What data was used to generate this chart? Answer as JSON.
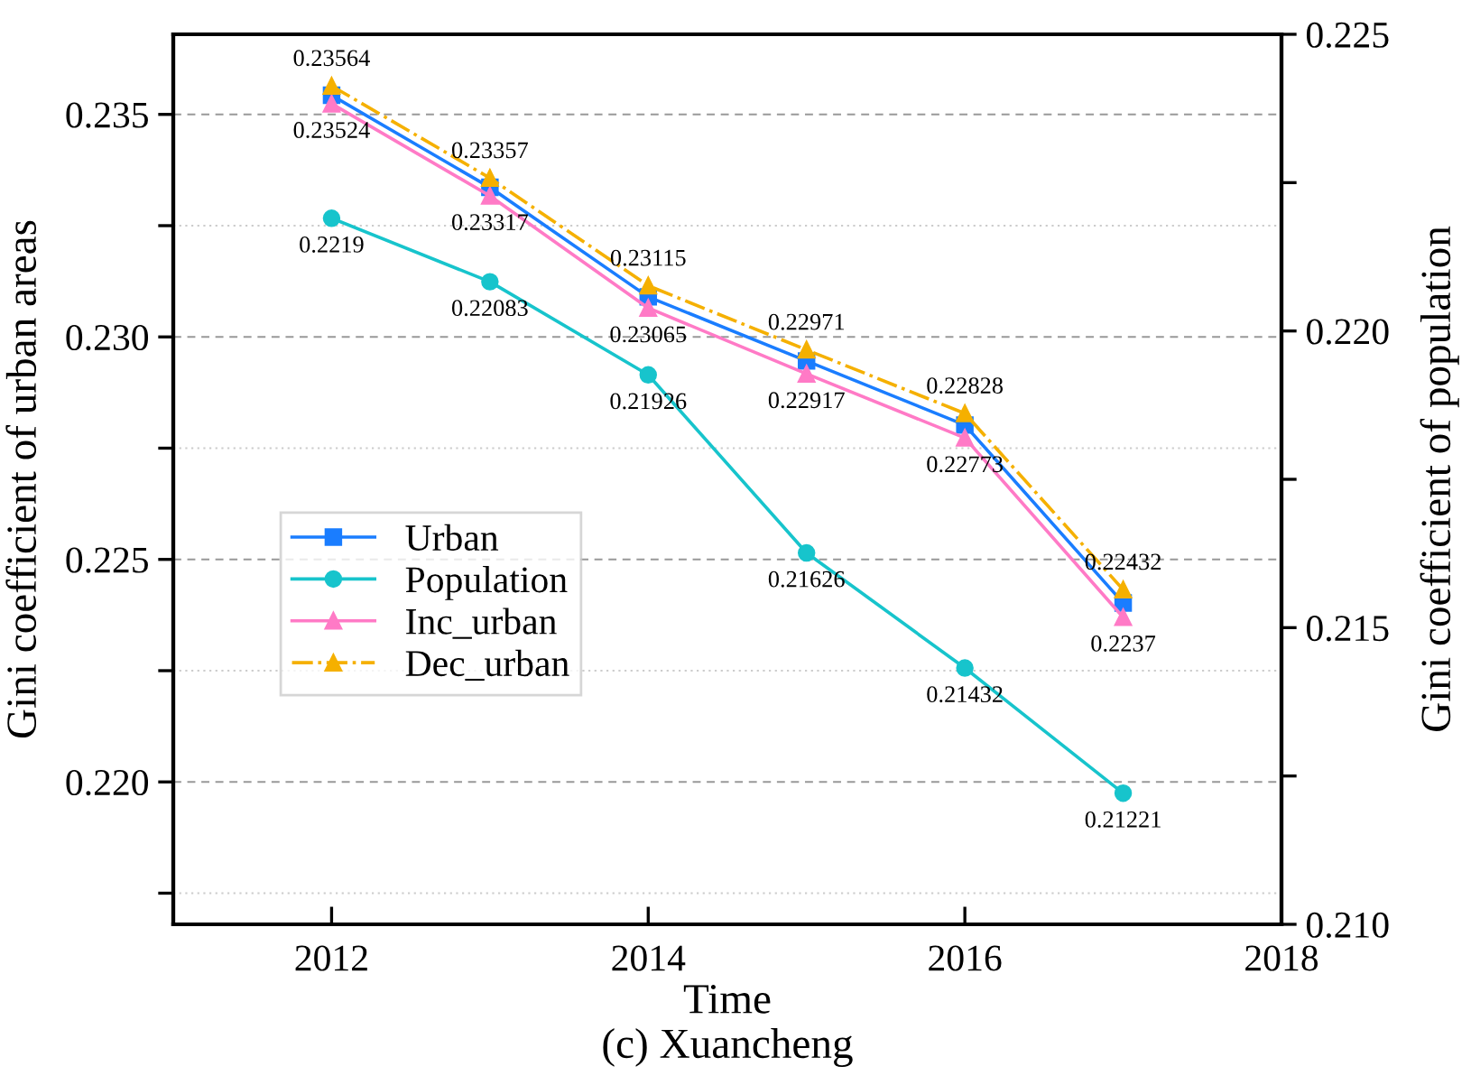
{
  "chart_data": {
    "type": "line",
    "title": "(c) Xuancheng",
    "xlabel": "Time",
    "ylabel": "Gini coefficient of urban areas",
    "y2label": "Gini coefficient of population",
    "x": [
      2012,
      2013,
      2014,
      2015,
      2016,
      2017
    ],
    "xlim": [
      2011,
      2018
    ],
    "xticks": [
      2012,
      2014,
      2016,
      2018
    ],
    "ylim": [
      0.2168,
      0.2368
    ],
    "yticks": [
      {
        "value": 0.2175,
        "label": null
      },
      {
        "value": 0.22,
        "label": "0.220"
      },
      {
        "value": 0.2225,
        "label": null
      },
      {
        "value": 0.225,
        "label": "0.225"
      },
      {
        "value": 0.2275,
        "label": null
      },
      {
        "value": 0.23,
        "label": "0.230"
      },
      {
        "value": 0.2325,
        "label": null
      },
      {
        "value": 0.235,
        "label": "0.235"
      }
    ],
    "y2lim": [
      0.21,
      0.225
    ],
    "y2ticks": [
      {
        "value": 0.21,
        "label": "0.210"
      },
      {
        "value": 0.2125,
        "label": null
      },
      {
        "value": 0.215,
        "label": "0.215"
      },
      {
        "value": 0.2175,
        "label": null
      },
      {
        "value": 0.22,
        "label": "0.220"
      },
      {
        "value": 0.2225,
        "label": null
      },
      {
        "value": 0.225,
        "label": "0.225"
      }
    ],
    "grid": "y",
    "legend": "left",
    "series": [
      {
        "name": "Urban",
        "color": "#1a7dff",
        "marker": "square",
        "line_style": "solid",
        "values": [
          0.23543,
          0.23336,
          0.2309,
          0.22946,
          0.22802,
          0.22402
        ]
      },
      {
        "name": "Population",
        "color": "#17c4cc",
        "marker": "circle",
        "line_style": "solid",
        "axis": "y2",
        "values": [
          0.2219,
          0.22083,
          0.21926,
          0.21626,
          0.21432,
          0.21221
        ],
        "value_labels": [
          "0.2219",
          "0.22083",
          "0.21926",
          "0.21626",
          "0.21432",
          "0.21221"
        ]
      },
      {
        "name": "Inc_urban",
        "color": "#ff7ac6",
        "marker": "triangle",
        "line_style": "solid",
        "values": [
          0.23524,
          0.23317,
          0.23065,
          0.22917,
          0.22773,
          0.2237
        ],
        "value_labels": [
          "0.23524",
          "0.23317",
          "0.23065",
          "0.22917",
          "0.22773",
          "0.2237"
        ]
      },
      {
        "name": "Dec_urban",
        "color": "#f5b000",
        "marker": "triangle",
        "line_style": "dashed",
        "values": [
          0.23564,
          0.23357,
          0.23115,
          0.22971,
          0.22828,
          0.22432
        ],
        "value_labels": [
          "0.23564",
          "0.23357",
          "0.23115",
          "0.22971",
          "0.22828",
          "0.22432"
        ]
      }
    ]
  }
}
